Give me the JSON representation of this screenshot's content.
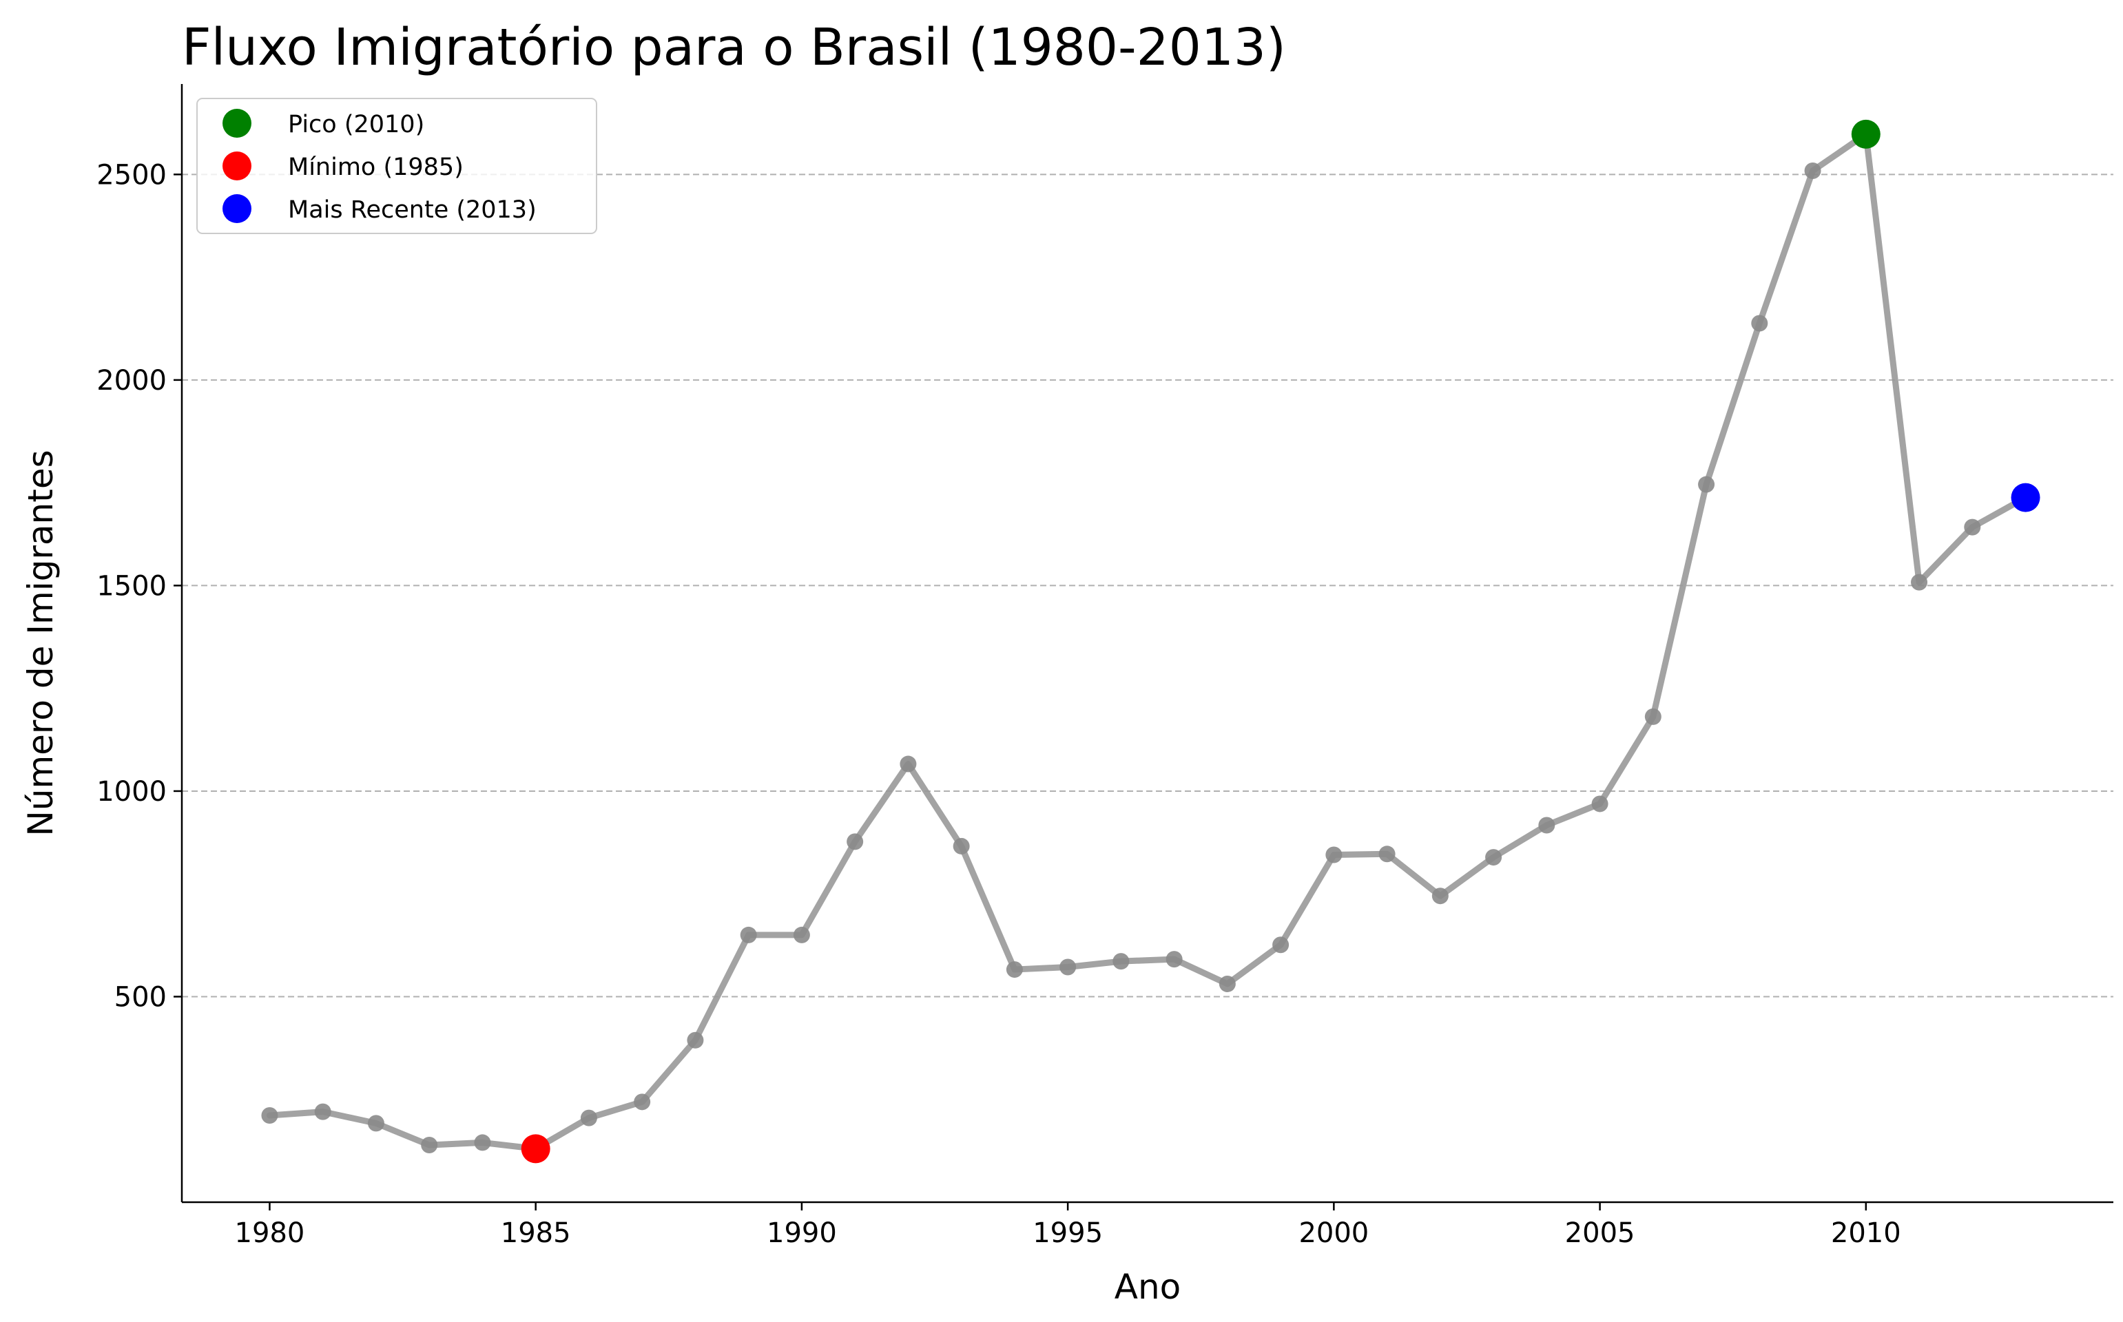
{
  "chart_data": {
    "type": "line",
    "title": "Fluxo Imigratório para o Brasil (1980-2013)",
    "xlabel": "Ano",
    "ylabel": "Número de Imigrantes",
    "xlim": [
      1978.35,
      2014.65
    ],
    "ylim": [
      0,
      2720
    ],
    "xticks": [
      1980,
      1985,
      1990,
      1995,
      2000,
      2005,
      2010
    ],
    "yticks": [
      500,
      1000,
      1500,
      2000,
      2500
    ],
    "grid": {
      "axis": "y",
      "style": "dashed"
    },
    "legend_position": "top-left",
    "x": [
      1980,
      1981,
      1982,
      1983,
      1984,
      1985,
      1986,
      1987,
      1988,
      1989,
      1990,
      1991,
      1992,
      1993,
      1994,
      1995,
      1996,
      1997,
      1998,
      1999,
      2000,
      2001,
      2002,
      2003,
      2004,
      2005,
      2006,
      2007,
      2008,
      2009,
      2010,
      2011,
      2012,
      2013
    ],
    "series": [
      {
        "values": [
          211,
          220,
          192,
          139,
          145,
          130,
          205,
          244,
          394,
          650,
          650,
          877,
          1066,
          866,
          566,
          572,
          586,
          591,
          531,
          626,
          845,
          847,
          745,
          839,
          917,
          969,
          1181,
          1746,
          2138,
          2509,
          2598,
          1508,
          1642,
          1714
        ],
        "color": "#999999"
      }
    ],
    "highlights": [
      {
        "label": "Pico (2010)",
        "x": 2010,
        "y": 2598,
        "color": "#008000"
      },
      {
        "label": "Mínimo (1985)",
        "x": 1985,
        "y": 130,
        "color": "#ff0000"
      },
      {
        "label": "Mais Recente (2013)",
        "x": 2013,
        "y": 1714,
        "color": "#0000ff"
      }
    ]
  }
}
